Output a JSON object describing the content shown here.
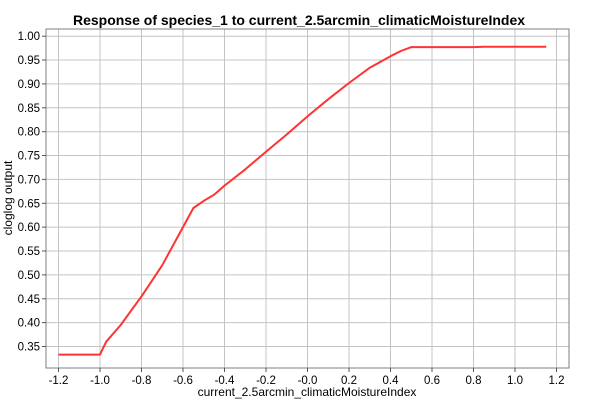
{
  "chart_data": {
    "type": "line",
    "title": "Response of species_1 to current_2.5arcmin_climaticMoistureIndex",
    "xlabel": "current_2.5arcmin_climaticMoistureIndex",
    "ylabel": "cloglog output",
    "xlim": [
      -1.26,
      1.26
    ],
    "ylim": [
      0.305,
      1.015
    ],
    "grid": true,
    "xticks": [
      -1.2,
      -1.0,
      -0.8,
      -0.6,
      -0.4,
      -0.2,
      0.0,
      0.2,
      0.4,
      0.6,
      0.8,
      1.0,
      1.2
    ],
    "xtick_labels": [
      "-1.2",
      "-1.0",
      "-0.8",
      "-0.6",
      "-0.4",
      "-0.2",
      "-0.0",
      "0.2",
      "0.4",
      "0.6",
      "0.8",
      "1.0",
      "1.2"
    ],
    "yticks": [
      0.35,
      0.4,
      0.45,
      0.5,
      0.55,
      0.6,
      0.65,
      0.7,
      0.75,
      0.8,
      0.85,
      0.9,
      0.95,
      1.0
    ],
    "ytick_labels": [
      "0.35",
      "0.40",
      "0.45",
      "0.50",
      "0.55",
      "0.60",
      "0.65",
      "0.70",
      "0.75",
      "0.80",
      "0.85",
      "0.90",
      "0.95",
      "1.00"
    ],
    "series": [
      {
        "color": "#ff3333",
        "x": [
          -1.2,
          -1.0,
          -0.97,
          -0.9,
          -0.8,
          -0.7,
          -0.6,
          -0.55,
          -0.5,
          -0.45,
          -0.4,
          -0.3,
          -0.2,
          -0.1,
          0.0,
          0.1,
          0.2,
          0.3,
          0.4,
          0.45,
          0.5,
          0.6,
          0.7,
          0.8,
          0.85,
          1.0,
          1.15
        ],
        "y": [
          0.333,
          0.333,
          0.36,
          0.395,
          0.455,
          0.52,
          0.6,
          0.64,
          0.655,
          0.668,
          0.687,
          0.721,
          0.758,
          0.794,
          0.832,
          0.868,
          0.902,
          0.934,
          0.958,
          0.969,
          0.977,
          0.977,
          0.977,
          0.977,
          0.978,
          0.978,
          0.978
        ]
      }
    ]
  }
}
